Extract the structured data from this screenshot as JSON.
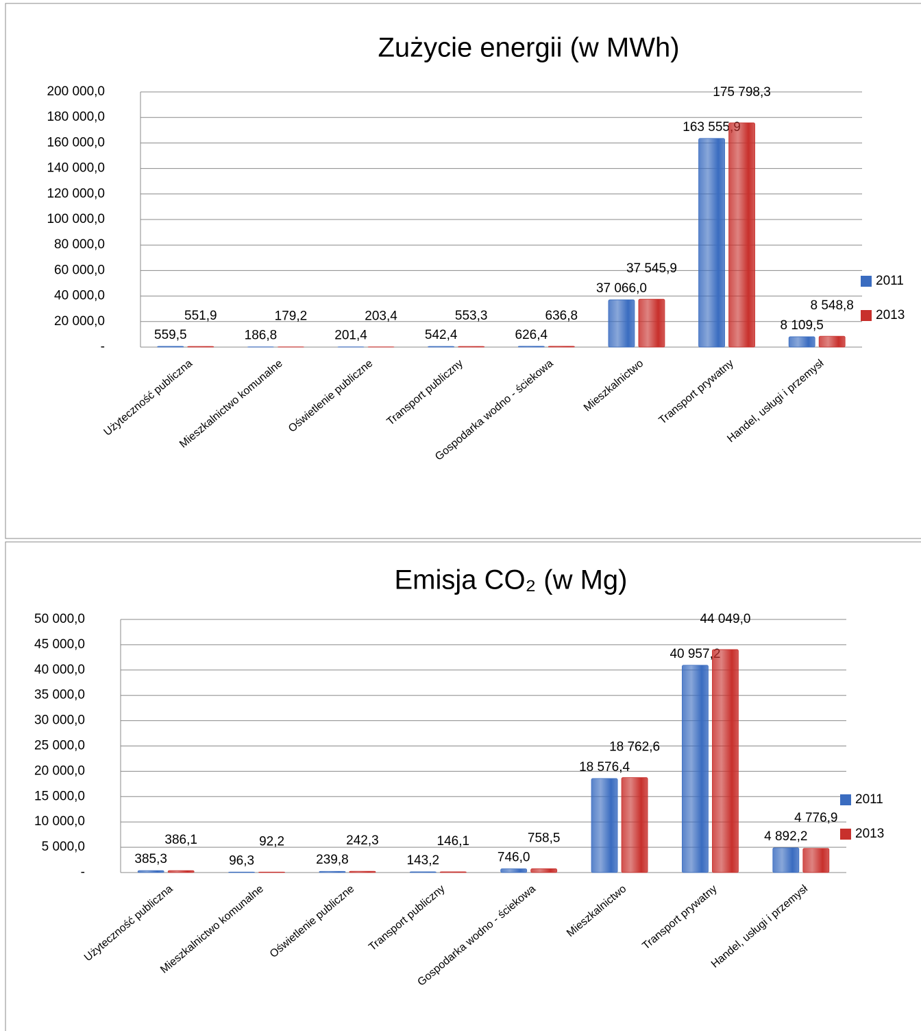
{
  "chart_data": [
    {
      "type": "bar",
      "title": "Zużycie energii (w MWh)",
      "categories": [
        "Użyteczność publiczna",
        "Mieszkalnictwo komunalne",
        "Oświetlenie publiczne",
        "Transport publiczny",
        "Gospodarka wodno - ściekowa",
        "Mieszkalnictwo",
        "Transport prywatny",
        "Handel, usługi i przemysł"
      ],
      "series": [
        {
          "name": "2011",
          "color": "#3a6cc0",
          "values": [
            559.5,
            186.8,
            201.4,
            542.4,
            626.4,
            37066.0,
            163555.9,
            8109.5
          ],
          "value_labels": [
            "559,5",
            "186,8",
            "201,4",
            "542,4",
            "626,4",
            "37 066,0",
            "163 555,9",
            "8 109,5"
          ]
        },
        {
          "name": "2013",
          "color": "#c8302c",
          "values": [
            551.9,
            179.2,
            203.4,
            553.3,
            636.8,
            37545.9,
            175798.3,
            8548.8
          ],
          "value_labels": [
            "551,9",
            "179,2",
            "203,4",
            "553,3",
            "636,8",
            "37 545,9",
            "175 798,3",
            "8 548,8"
          ]
        }
      ],
      "ylim": [
        0,
        200000
      ],
      "yticks": [
        {
          "value": 0,
          "label": "-"
        },
        {
          "value": 20000,
          "label": "20 000,0"
        },
        {
          "value": 40000,
          "label": "40 000,0"
        },
        {
          "value": 60000,
          "label": "60 000,0"
        },
        {
          "value": 80000,
          "label": "80 000,0"
        },
        {
          "value": 100000,
          "label": "100 000,0"
        },
        {
          "value": 120000,
          "label": "120 000,0"
        },
        {
          "value": 140000,
          "label": "140 000,0"
        },
        {
          "value": 160000,
          "label": "160 000,0"
        },
        {
          "value": 180000,
          "label": "180 000,0"
        },
        {
          "value": 200000,
          "label": "200 000,0"
        }
      ],
      "grid": true,
      "legend": "right"
    },
    {
      "type": "bar",
      "title": "Emisja CO₂ (w Mg)",
      "categories": [
        "Użyteczność publiczna",
        "Mieszkalnictwo komunalne",
        "Oświetlenie publiczne",
        "Transport publiczny",
        "Gospodarka wodno - ściekowa",
        "Mieszkalnictwo",
        "Transport prywatny",
        "Handel, usługi i przemysł"
      ],
      "series": [
        {
          "name": "2011",
          "color": "#3a6cc0",
          "values": [
            385.3,
            96.3,
            239.8,
            143.2,
            746.0,
            18576.4,
            40957.2,
            4892.2
          ],
          "value_labels": [
            "385,3",
            "96,3",
            "239,8",
            "143,2",
            "746,0",
            "18 576,4",
            "40 957,2",
            "4 892,2"
          ]
        },
        {
          "name": "2013",
          "color": "#c8302c",
          "values": [
            386.1,
            92.2,
            242.3,
            146.1,
            758.5,
            18762.6,
            44049.0,
            4776.9
          ],
          "value_labels": [
            "386,1",
            "92,2",
            "242,3",
            "146,1",
            "758,5",
            "18 762,6",
            "44 049,0",
            "4 776,9"
          ]
        }
      ],
      "ylim": [
        0,
        50000
      ],
      "yticks": [
        {
          "value": 0,
          "label": "-"
        },
        {
          "value": 5000,
          "label": "5 000,0"
        },
        {
          "value": 10000,
          "label": "10 000,0"
        },
        {
          "value": 15000,
          "label": "15 000,0"
        },
        {
          "value": 20000,
          "label": "20 000,0"
        },
        {
          "value": 25000,
          "label": "25 000,0"
        },
        {
          "value": 30000,
          "label": "30 000,0"
        },
        {
          "value": 35000,
          "label": "35 000,0"
        },
        {
          "value": 40000,
          "label": "40 000,0"
        },
        {
          "value": 45000,
          "label": "45 000,0"
        },
        {
          "value": 50000,
          "label": "50 000,0"
        }
      ],
      "grid": true,
      "legend": "right"
    }
  ]
}
